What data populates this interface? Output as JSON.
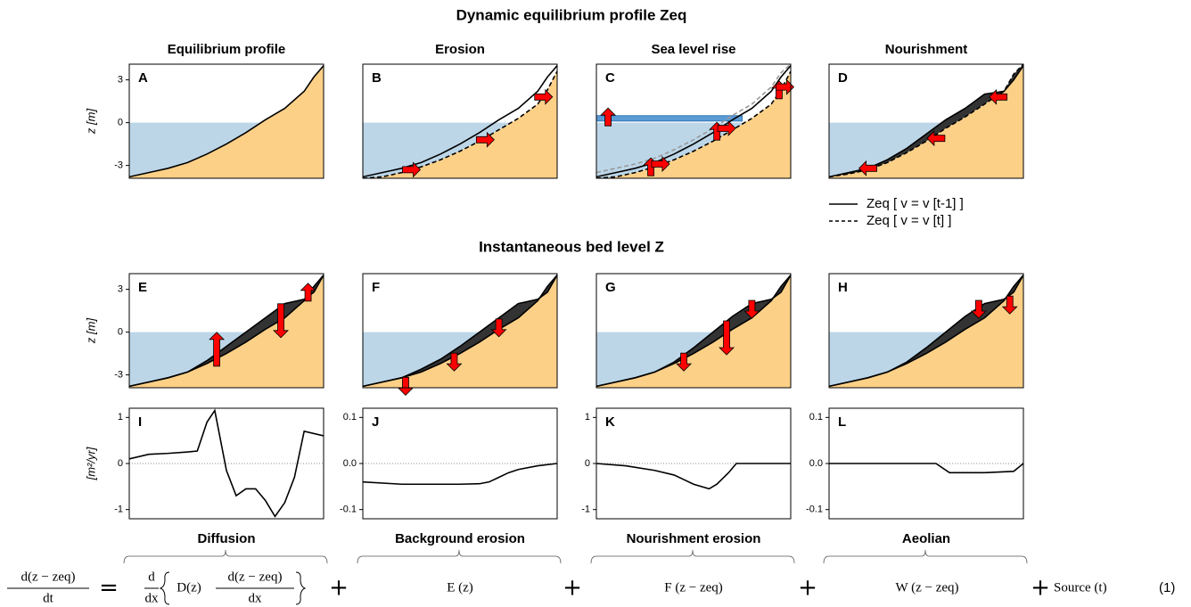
{
  "title": "Dynamic equilibrium profile Zeq",
  "subtitle": "Instantaneous bed level Z",
  "legend": [
    {
      "label": "Zeq [ v = v [t-1] ]",
      "dash": false
    },
    {
      "label": "Zeq [ v = v [t] ]",
      "dash": true
    }
  ],
  "equation": {
    "lhs_num": "d(z − zeq)",
    "lhs_den": "dt",
    "equals": "=",
    "d_num": "d",
    "d_den": "dx",
    "diff_term": "D(z)",
    "diff_num": "d(z − zeq)",
    "diff_den": "dx",
    "plus": "+",
    "terms": [
      "E (z)",
      "F (z − zeq)",
      "W (z − zeq)",
      "Source (t)"
    ],
    "number": "(1)"
  },
  "chart_data": [
    {
      "type": "profile",
      "title": "Equilibrium profile",
      "label": "A",
      "ylabel": "z [m]",
      "sea_level": 0,
      "x": [
        0,
        10,
        20,
        30,
        40,
        50,
        60,
        70,
        80,
        90,
        95,
        100
      ],
      "xlim": [
        0,
        100
      ],
      "ylim": [
        -3.9,
        4.1
      ],
      "yticks": [
        3,
        0,
        -3
      ],
      "series": [
        {
          "color": "#000000",
          "dash": false,
          "values": [
            -3.8,
            -3.5,
            -3.2,
            -2.8,
            -2.2,
            -1.5,
            -0.7,
            0.2,
            1.0,
            2.2,
            3.2,
            4.0
          ]
        }
      ]
    },
    {
      "type": "profile",
      "title": "Erosion",
      "label": "B",
      "sea_level": 0,
      "x": [
        0,
        10,
        20,
        30,
        40,
        50,
        60,
        70,
        80,
        90,
        95,
        100
      ],
      "xlim": [
        0,
        100
      ],
      "ylim": [
        -3.9,
        4.1
      ],
      "series": [
        {
          "color": "#000000",
          "dash": false,
          "values": [
            -3.8,
            -3.5,
            -3.2,
            -2.8,
            -2.2,
            -1.5,
            -0.7,
            0.2,
            1.0,
            2.2,
            3.2,
            4.0
          ]
        },
        {
          "color": "#000000",
          "dash": true,
          "values": [
            -3.9,
            -3.8,
            -3.5,
            -3.1,
            -2.6,
            -2.0,
            -1.3,
            -0.5,
            0.3,
            1.3,
            2.3,
            3.6
          ]
        }
      ]
    },
    {
      "type": "profile",
      "title": "Sea level rise",
      "label": "C",
      "sea_level": 0,
      "raised_sea_level": 0.3,
      "x": [
        0,
        10,
        20,
        30,
        40,
        50,
        60,
        70,
        80,
        90,
        95,
        100
      ],
      "xlim": [
        0,
        100
      ],
      "ylim": [
        -3.9,
        4.1
      ],
      "series": [
        {
          "color": "#000000",
          "dash": false,
          "values": [
            -3.8,
            -3.5,
            -3.2,
            -2.8,
            -2.2,
            -1.5,
            -0.7,
            0.2,
            1.0,
            2.2,
            3.2,
            4.0
          ]
        },
        {
          "color": "#000000",
          "dash": true,
          "values": [
            -3.9,
            -3.8,
            -3.5,
            -3.1,
            -2.6,
            -2.0,
            -1.3,
            -0.5,
            0.3,
            1.3,
            2.3,
            3.6
          ]
        },
        {
          "color": "#999999",
          "dash": true,
          "values": [
            -3.5,
            -3.2,
            -2.9,
            -2.5,
            -1.9,
            -1.2,
            -0.4,
            0.5,
            1.3,
            2.5,
            3.5,
            4.1
          ]
        }
      ]
    },
    {
      "type": "profile",
      "title": "Nourishment",
      "label": "D",
      "sea_level": 0,
      "fill_between": true,
      "x": [
        0,
        10,
        20,
        30,
        40,
        50,
        60,
        70,
        80,
        90,
        95,
        100
      ],
      "xlim": [
        0,
        100
      ],
      "ylim": [
        -3.9,
        4.1
      ],
      "series": [
        {
          "color": "#000000",
          "dash": false,
          "values": [
            -3.8,
            -3.5,
            -3.2,
            -2.6,
            -1.8,
            -0.8,
            0.2,
            1.0,
            2.0,
            2.2,
            3.0,
            4.0
          ]
        },
        {
          "color": "#000000",
          "dash": true,
          "values": [
            -3.8,
            -3.6,
            -3.3,
            -2.8,
            -2.1,
            -1.3,
            -0.4,
            0.4,
            1.3,
            2.2,
            3.4,
            4.1
          ]
        }
      ]
    },
    {
      "type": "profile",
      "label": "E",
      "ylabel": "z [m]",
      "sea_level": 0,
      "fill_between": true,
      "x": [
        0,
        10,
        20,
        30,
        40,
        50,
        60,
        70,
        80,
        90,
        95,
        100
      ],
      "xlim": [
        0,
        100
      ],
      "ylim": [
        -3.9,
        4.1
      ],
      "yticks": [
        3,
        0,
        -3
      ],
      "series": [
        {
          "color": "#000000",
          "dash": false,
          "values": [
            -3.8,
            -3.5,
            -3.2,
            -2.8,
            -2.0,
            -1.0,
            0.0,
            1.0,
            2.0,
            2.3,
            2.8,
            4.0
          ]
        },
        {
          "color": "#000000",
          "dash": false,
          "values": [
            -3.8,
            -3.5,
            -3.2,
            -2.8,
            -2.2,
            -1.5,
            -0.7,
            0.2,
            1.0,
            2.2,
            3.2,
            4.0
          ]
        }
      ]
    },
    {
      "type": "profile",
      "label": "F",
      "sea_level": 0,
      "fill_between": true,
      "x": [
        0,
        10,
        20,
        30,
        40,
        50,
        60,
        70,
        80,
        90,
        95,
        100
      ],
      "xlim": [
        0,
        100
      ],
      "ylim": [
        -3.9,
        4.1
      ],
      "series": [
        {
          "color": "#000000",
          "dash": false,
          "values": [
            -3.8,
            -3.5,
            -3.2,
            -2.6,
            -1.9,
            -1.0,
            0.0,
            1.0,
            2.0,
            2.3,
            2.8,
            4.0
          ]
        },
        {
          "color": "#000000",
          "dash": false,
          "values": [
            -3.8,
            -3.5,
            -3.2,
            -2.8,
            -2.2,
            -1.5,
            -0.7,
            0.2,
            1.0,
            2.2,
            3.2,
            4.0
          ]
        }
      ]
    },
    {
      "type": "profile",
      "label": "G",
      "sea_level": 0,
      "fill_between": true,
      "x": [
        0,
        10,
        20,
        30,
        40,
        50,
        60,
        70,
        80,
        90,
        95,
        100
      ],
      "xlim": [
        0,
        100
      ],
      "ylim": [
        -3.9,
        4.1
      ],
      "series": [
        {
          "color": "#000000",
          "dash": false,
          "values": [
            -3.8,
            -3.5,
            -3.2,
            -2.8,
            -2.1,
            -1.1,
            0.0,
            1.1,
            2.0,
            2.3,
            2.8,
            4.0
          ]
        },
        {
          "color": "#000000",
          "dash": false,
          "values": [
            -3.8,
            -3.5,
            -3.2,
            -2.8,
            -2.2,
            -1.5,
            -0.7,
            0.2,
            1.0,
            2.2,
            3.2,
            4.0
          ]
        }
      ]
    },
    {
      "type": "profile",
      "label": "H",
      "sea_level": 0,
      "fill_between": true,
      "x": [
        0,
        10,
        20,
        30,
        40,
        50,
        60,
        70,
        80,
        90,
        95,
        100
      ],
      "xlim": [
        0,
        100
      ],
      "ylim": [
        -3.9,
        4.1
      ],
      "series": [
        {
          "color": "#000000",
          "dash": false,
          "values": [
            -3.8,
            -3.5,
            -3.2,
            -2.8,
            -2.1,
            -1.1,
            0.0,
            1.1,
            2.0,
            2.3,
            2.8,
            4.0
          ]
        },
        {
          "color": "#000000",
          "dash": false,
          "values": [
            -3.8,
            -3.5,
            -3.2,
            -2.8,
            -2.2,
            -1.5,
            -0.7,
            0.2,
            1.0,
            2.2,
            3.2,
            4.0
          ]
        }
      ]
    },
    {
      "type": "line",
      "label": "I",
      "ylabel": "[m²/yr]",
      "xlabel": "Diffusion",
      "zero_line": true,
      "x": [
        0,
        10,
        20,
        30,
        35,
        40,
        44,
        50,
        55,
        60,
        65,
        70,
        75,
        80,
        85,
        90,
        100
      ],
      "xlim": [
        0,
        100
      ],
      "ylim": [
        -1.2,
        1.2
      ],
      "yticks": [
        1,
        0,
        -1
      ],
      "series": [
        {
          "color": "#000000",
          "values": [
            0.1,
            0.2,
            0.22,
            0.25,
            0.27,
            0.9,
            1.15,
            -0.15,
            -0.7,
            -0.55,
            -0.55,
            -0.8,
            -1.15,
            -0.85,
            -0.3,
            0.7,
            0.6
          ]
        }
      ]
    },
    {
      "type": "line",
      "label": "J",
      "xlabel": "Background erosion",
      "zero_line": true,
      "x": [
        0,
        20,
        30,
        40,
        50,
        60,
        65,
        70,
        75,
        80,
        90,
        100
      ],
      "xlim": [
        0,
        100
      ],
      "ylim": [
        -0.12,
        0.12
      ],
      "yticks": [
        0.1,
        {
          "value": 0,
          "label": "0.0"
        },
        -0.1
      ],
      "series": [
        {
          "color": "#000000",
          "values": [
            -0.04,
            -0.045,
            -0.045,
            -0.045,
            -0.045,
            -0.044,
            -0.04,
            -0.03,
            -0.02,
            -0.013,
            -0.005,
            0
          ]
        }
      ]
    },
    {
      "type": "line",
      "label": "K",
      "xlabel": "Nourishment erosion",
      "zero_line": true,
      "x": [
        0,
        15,
        30,
        40,
        45,
        50,
        58,
        62,
        68,
        72,
        100
      ],
      "xlim": [
        0,
        100
      ],
      "ylim": [
        -1.2,
        1.2
      ],
      "yticks": [
        1,
        0,
        -1
      ],
      "series": [
        {
          "color": "#000000",
          "values": [
            0,
            -0.05,
            -0.15,
            -0.25,
            -0.35,
            -0.45,
            -0.55,
            -0.45,
            -0.2,
            0,
            0
          ]
        }
      ]
    },
    {
      "type": "line",
      "label": "L",
      "xlabel": "Aeolian",
      "zero_line": true,
      "x": [
        0,
        30,
        55,
        62,
        80,
        95,
        100
      ],
      "xlim": [
        0,
        100
      ],
      "ylim": [
        -0.12,
        0.12
      ],
      "yticks": [
        0.1,
        {
          "value": 0,
          "label": "0.0"
        },
        -0.1
      ],
      "series": [
        {
          "color": "#000000",
          "values": [
            0,
            0,
            0,
            -0.02,
            -0.02,
            -0.017,
            0
          ]
        }
      ]
    }
  ]
}
